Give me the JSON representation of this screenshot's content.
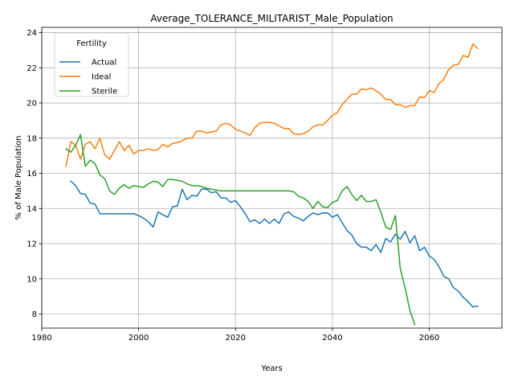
{
  "chart_data": {
    "type": "line",
    "title": "Average_TOLERANCE_MILITARIST_Male_Population",
    "xlabel": "Years",
    "ylabel": "% of Male Population",
    "xlim": [
      1980,
      2075
    ],
    "ylim": [
      7.2,
      24.3
    ],
    "x_ticks": [
      1980,
      2000,
      2020,
      2040,
      2060
    ],
    "y_ticks": [
      8,
      10,
      12,
      14,
      16,
      18,
      20,
      22,
      24
    ],
    "grid": true,
    "legend": {
      "title": "Fertility",
      "placement": "top-left"
    },
    "series": [
      {
        "name": "Actual",
        "color": "#1f77b4",
        "x": [
          1986,
          1987,
          1988,
          1989,
          1990,
          1991,
          1992,
          1993,
          1994,
          1995,
          1996,
          1997,
          1998,
          1999,
          2000,
          2001,
          2002,
          2003,
          2004,
          2005,
          2006,
          2007,
          2008,
          2009,
          2010,
          2011,
          2012,
          2013,
          2014,
          2015,
          2016,
          2017,
          2018,
          2019,
          2020,
          2021,
          2022,
          2023,
          2024,
          2025,
          2026,
          2027,
          2028,
          2029,
          2030,
          2031,
          2032,
          2033,
          2034,
          2035,
          2036,
          2037,
          2038,
          2039,
          2040,
          2041,
          2042,
          2043,
          2044,
          2045,
          2046,
          2047,
          2048,
          2049,
          2050,
          2051,
          2052,
          2053,
          2054,
          2055,
          2056,
          2057,
          2058,
          2059,
          2060,
          2061,
          2062,
          2063,
          2064,
          2065,
          2066,
          2067,
          2068,
          2069,
          2070
        ],
        "y": [
          15.55,
          15.3,
          14.85,
          14.8,
          14.3,
          14.25,
          13.7,
          13.7,
          13.7,
          13.7,
          13.7,
          13.7,
          13.7,
          13.7,
          13.6,
          13.45,
          13.25,
          12.95,
          13.8,
          13.65,
          13.5,
          14.1,
          14.15,
          15.1,
          14.5,
          14.75,
          14.7,
          15.1,
          15.1,
          14.9,
          14.95,
          14.6,
          14.6,
          14.35,
          14.45,
          14.1,
          13.7,
          13.25,
          13.35,
          13.15,
          13.4,
          13.15,
          13.4,
          13.15,
          13.7,
          13.8,
          13.55,
          13.45,
          13.3,
          13.55,
          13.75,
          13.65,
          13.75,
          13.75,
          13.5,
          13.65,
          13.2,
          12.75,
          12.5,
          12.0,
          11.8,
          11.8,
          11.6,
          11.95,
          11.5,
          12.3,
          12.1,
          12.55,
          12.25,
          12.7,
          12.05,
          12.45,
          11.6,
          11.8,
          11.3,
          11.1,
          10.7,
          10.15,
          10.0,
          9.5,
          9.3,
          8.95,
          8.7,
          8.4,
          8.45
        ]
      },
      {
        "name": "Ideal",
        "color": "#ff7f0e",
        "x": [
          1985,
          1986,
          1987,
          1988,
          1989,
          1990,
          1991,
          1992,
          1993,
          1994,
          1995,
          1996,
          1997,
          1998,
          1999,
          2000,
          2001,
          2002,
          2003,
          2004,
          2005,
          2006,
          2007,
          2008,
          2009,
          2010,
          2011,
          2012,
          2013,
          2014,
          2015,
          2016,
          2017,
          2018,
          2019,
          2020,
          2021,
          2022,
          2023,
          2024,
          2025,
          2026,
          2027,
          2028,
          2029,
          2030,
          2031,
          2032,
          2033,
          2034,
          2035,
          2036,
          2037,
          2038,
          2039,
          2040,
          2041,
          2042,
          2043,
          2044,
          2045,
          2046,
          2047,
          2048,
          2049,
          2050,
          2051,
          2052,
          2053,
          2054,
          2055,
          2056,
          2057,
          2058,
          2059,
          2060,
          2061,
          2062,
          2063,
          2064,
          2065,
          2066,
          2067,
          2068,
          2069,
          2070
        ],
        "y": [
          16.4,
          17.8,
          17.6,
          16.8,
          17.65,
          17.8,
          17.4,
          18.0,
          17.05,
          16.8,
          17.3,
          17.8,
          17.3,
          17.6,
          17.1,
          17.3,
          17.3,
          17.4,
          17.3,
          17.35,
          17.65,
          17.5,
          17.7,
          17.75,
          17.85,
          18.0,
          18.0,
          18.4,
          18.4,
          18.3,
          18.35,
          18.4,
          18.75,
          18.85,
          18.75,
          18.5,
          18.4,
          18.3,
          18.15,
          18.6,
          18.85,
          18.9,
          18.9,
          18.85,
          18.7,
          18.55,
          18.55,
          18.25,
          18.2,
          18.25,
          18.4,
          18.65,
          18.75,
          18.75,
          19.0,
          19.3,
          19.45,
          19.9,
          20.2,
          20.5,
          20.5,
          20.8,
          20.75,
          20.85,
          20.7,
          20.5,
          20.2,
          20.2,
          19.9,
          19.9,
          19.75,
          19.85,
          19.85,
          20.35,
          20.3,
          20.7,
          20.6,
          21.1,
          21.35,
          21.9,
          22.15,
          22.2,
          22.7,
          22.6,
          23.35,
          23.1
        ]
      },
      {
        "name": "Sterile",
        "color": "#2ca02c",
        "x": [
          1985,
          1986,
          1987,
          1988,
          1989,
          1990,
          1991,
          1992,
          1993,
          1994,
          1995,
          1996,
          1997,
          1998,
          1999,
          2000,
          2001,
          2002,
          2003,
          2004,
          2005,
          2006,
          2007,
          2008,
          2009,
          2010,
          2011,
          2012,
          2013,
          2014,
          2015,
          2016,
          2017,
          2018,
          2019,
          2020,
          2021,
          2022,
          2023,
          2024,
          2025,
          2026,
          2027,
          2028,
          2029,
          2030,
          2031,
          2032,
          2033,
          2034,
          2035,
          2036,
          2037,
          2038,
          2039,
          2040,
          2041,
          2042,
          2043,
          2044,
          2045,
          2046,
          2047,
          2048,
          2049,
          2050,
          2051,
          2052,
          2053,
          2054,
          2055,
          2056,
          2057
        ],
        "y": [
          17.4,
          17.2,
          17.6,
          18.2,
          16.4,
          16.75,
          16.55,
          15.9,
          15.7,
          15.0,
          14.8,
          15.15,
          15.35,
          15.15,
          15.3,
          15.25,
          15.2,
          15.4,
          15.55,
          15.5,
          15.25,
          15.65,
          15.65,
          15.6,
          15.55,
          15.4,
          15.3,
          15.3,
          15.25,
          15.15,
          15.1,
          15.05,
          15.0,
          15.0,
          15.0,
          15.0,
          15.0,
          15.0,
          15.0,
          15.0,
          15.0,
          15.0,
          15.0,
          15.0,
          15.0,
          15.0,
          15.0,
          14.95,
          14.7,
          14.6,
          14.4,
          14.0,
          14.4,
          14.1,
          14.05,
          14.35,
          14.45,
          15.0,
          15.25,
          14.8,
          14.45,
          14.75,
          14.4,
          14.4,
          14.5,
          13.8,
          12.95,
          12.8,
          13.6,
          10.6,
          9.5,
          8.2,
          7.4
        ]
      }
    ]
  }
}
